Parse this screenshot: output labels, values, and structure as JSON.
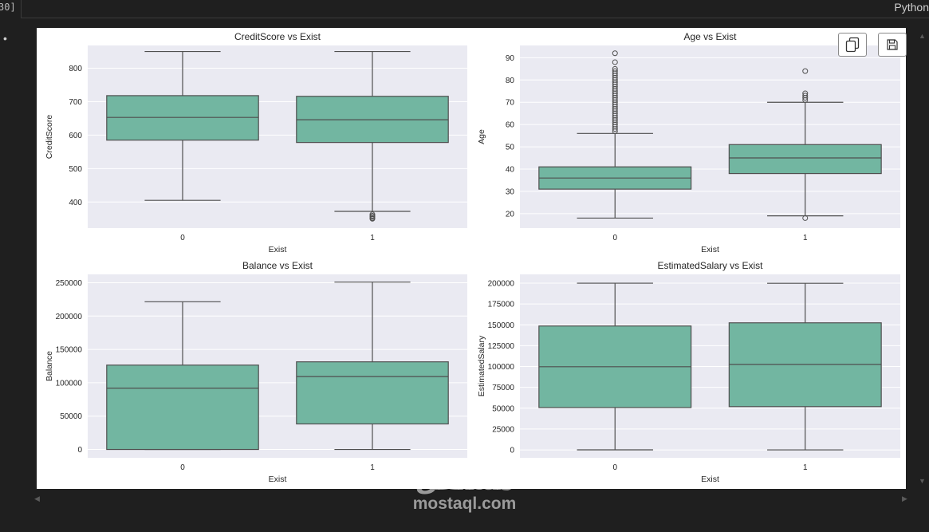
{
  "cell": {
    "label": "30]",
    "language": "Python"
  },
  "watermark": {
    "arabic": "مستقل",
    "latin": "mostaql.com"
  },
  "toolbar": {
    "copy_icon": "copy-icon",
    "save_icon": "save-icon"
  },
  "colors": {
    "box": "#72b6a1",
    "edge": "#4f4f4f",
    "panel": "#eaeaf2",
    "grid": "#ffffff"
  },
  "chart_data": [
    {
      "type": "box",
      "title": "CreditScore vs Exist",
      "xlabel": "Exist",
      "ylabel": "CreditScore",
      "categories": [
        "0",
        "1"
      ],
      "ylim": [
        322,
        868
      ],
      "yticks": [
        400,
        500,
        600,
        700,
        800
      ],
      "yticklabels": [
        "400",
        "500",
        "600",
        "700",
        "800"
      ],
      "boxes": [
        {
          "category": "0",
          "whislo": 405,
          "q1": 585,
          "med": 653,
          "q3": 718,
          "whishi": 850,
          "fliers": []
        },
        {
          "category": "1",
          "whislo": 372,
          "q1": 578,
          "med": 646,
          "q3": 716,
          "whishi": 850,
          "fliers": [
            363,
            359,
            356,
            352,
            350
          ]
        }
      ]
    },
    {
      "type": "box",
      "title": "Age vs Exist",
      "xlabel": "Exist",
      "ylabel": "Age",
      "categories": [
        "0",
        "1"
      ],
      "ylim": [
        13.5,
        95.5
      ],
      "yticks": [
        20,
        30,
        40,
        50,
        60,
        70,
        80,
        90
      ],
      "yticklabels": [
        "20",
        "30",
        "40",
        "50",
        "60",
        "70",
        "80",
        "90"
      ],
      "boxes": [
        {
          "category": "0",
          "whislo": 18,
          "q1": 31,
          "med": 36,
          "q3": 41,
          "whishi": 56,
          "fliers": [
            57,
            58,
            59,
            60,
            61,
            62,
            63,
            64,
            65,
            66,
            67,
            68,
            69,
            70,
            71,
            72,
            73,
            74,
            75,
            76,
            77,
            78,
            79,
            80,
            81,
            82,
            83,
            84,
            85,
            88,
            92
          ]
        },
        {
          "category": "1",
          "whislo": 19,
          "q1": 38,
          "med": 45,
          "q3": 51,
          "whishi": 70,
          "fliers": [
            18,
            71,
            72,
            73,
            74,
            84
          ]
        }
      ]
    },
    {
      "type": "box",
      "title": "Balance vs Exist",
      "xlabel": "Exist",
      "ylabel": "Balance",
      "categories": [
        "0",
        "1"
      ],
      "ylim": [
        -12500,
        262500
      ],
      "yticks": [
        0,
        50000,
        100000,
        150000,
        200000,
        250000
      ],
      "yticklabels": [
        "0",
        "50000",
        "100000",
        "150000",
        "200000",
        "250000"
      ],
      "boxes": [
        {
          "category": "0",
          "whislo": 0,
          "q1": 0,
          "med": 92000,
          "q3": 126500,
          "whishi": 221500,
          "fliers": []
        },
        {
          "category": "1",
          "whislo": 0,
          "q1": 38300,
          "med": 109300,
          "q3": 131400,
          "whishi": 250900,
          "fliers": []
        }
      ]
    },
    {
      "type": "box",
      "title": "EstimatedSalary vs Exist",
      "xlabel": "Exist",
      "ylabel": "EstimatedSalary",
      "categories": [
        "0",
        "1"
      ],
      "ylim": [
        -9500,
        210500
      ],
      "yticks": [
        0,
        25000,
        50000,
        75000,
        100000,
        125000,
        150000,
        175000,
        200000
      ],
      "yticklabels": [
        "0",
        "25000",
        "50000",
        "75000",
        "100000",
        "125000",
        "150000",
        "175000",
        "200000"
      ],
      "boxes": [
        {
          "category": "0",
          "whislo": 90,
          "q1": 50800,
          "med": 99700,
          "q3": 148600,
          "whishi": 199900,
          "fliers": []
        },
        {
          "category": "1",
          "whislo": 12,
          "q1": 51900,
          "med": 102500,
          "q3": 152400,
          "whishi": 199800,
          "fliers": []
        }
      ]
    }
  ]
}
